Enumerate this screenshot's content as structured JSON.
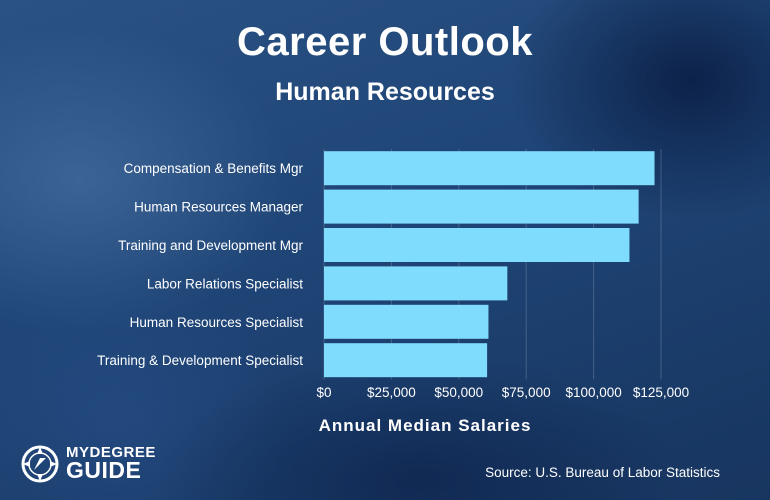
{
  "header": {
    "title": "Career Outlook",
    "subtitle": "Human Resources"
  },
  "footer": {
    "logo_top": "MYDEGREE",
    "logo_bottom": "GUIDE",
    "source": "Source: U.S. Bureau of Labor Statistics"
  },
  "colors": {
    "bar": "#7fdcfd",
    "background": "#1d3d6c",
    "text": "#ffffff"
  },
  "chart_data": {
    "type": "bar",
    "orientation": "horizontal",
    "title": "Career Outlook",
    "subtitle": "Human Resources",
    "xlabel": "Annual Median Salaries",
    "ylabel": "",
    "categories": [
      "Compensation & Benefits Mgr",
      "Human Resources Manager",
      "Training and Development Mgr",
      "Labor Relations Specialist",
      "Human Resources Specialist",
      "Training & Development Specialist"
    ],
    "values": [
      122600,
      116700,
      113300,
      68000,
      61000,
      60500
    ],
    "xlim": [
      0,
      125000
    ],
    "x_ticks": [
      0,
      25000,
      50000,
      75000,
      100000,
      125000
    ],
    "x_tick_labels": [
      "$0",
      "$25,000",
      "$50,000",
      "$75,000",
      "$100,000",
      "$125,000"
    ],
    "grid": "vertical",
    "legend": "none"
  }
}
